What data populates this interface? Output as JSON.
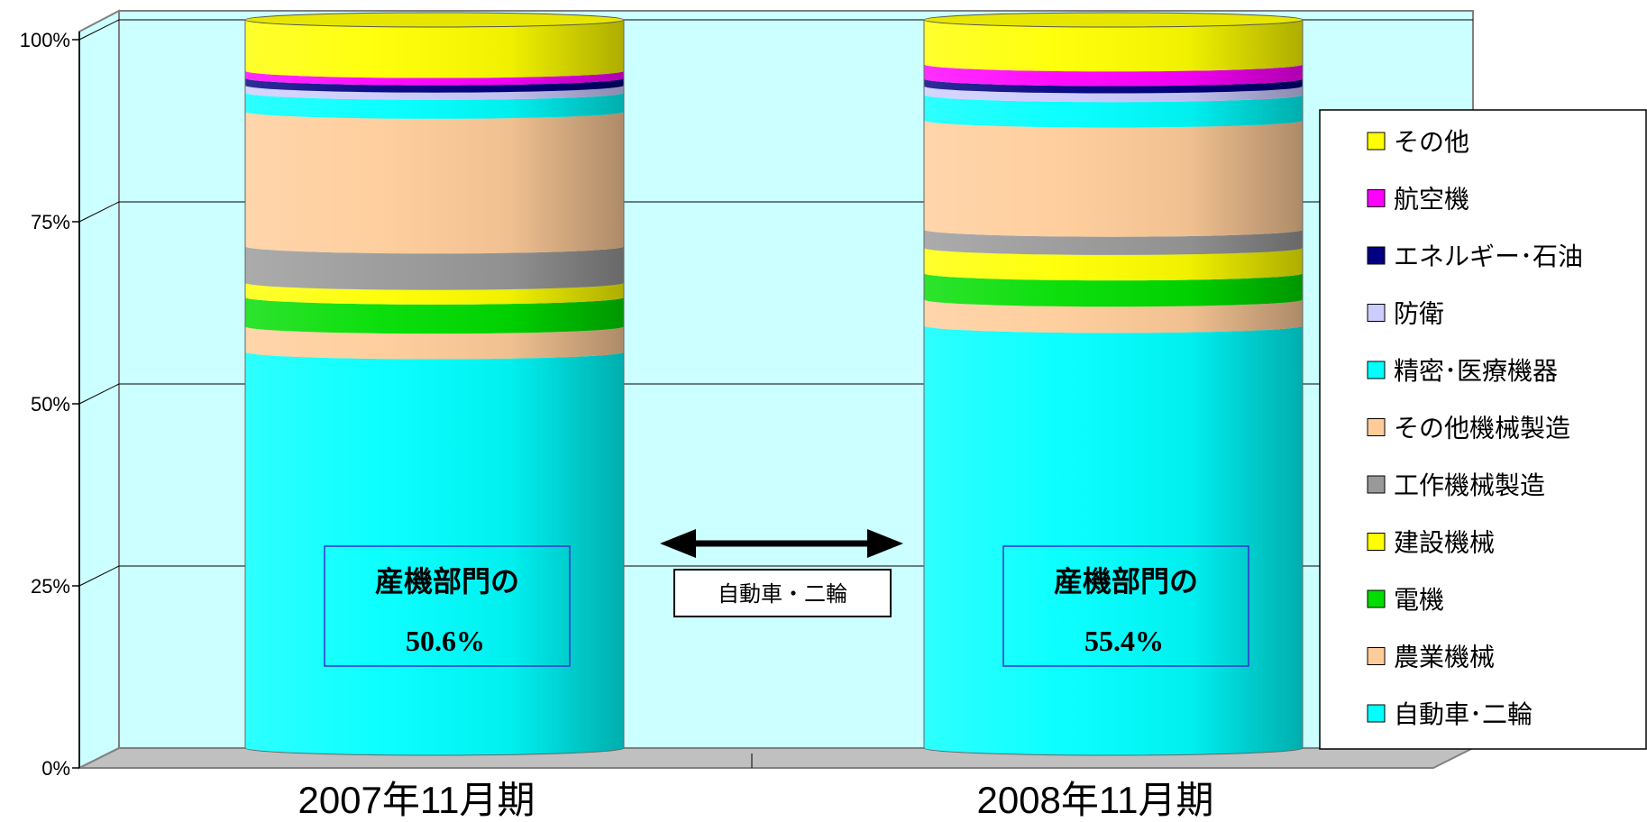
{
  "chart_data": {
    "type": "bar",
    "stacked": true,
    "percent_stacked": true,
    "style": "3d-cylinder",
    "categories": [
      "2007年11月期",
      "2008年11月期"
    ],
    "y_ticks": [
      "0%",
      "25%",
      "50%",
      "75%",
      "100%"
    ],
    "ylim": [
      0,
      100
    ],
    "grid": true,
    "legend_position": "right",
    "series": [
      {
        "name": "自動車･二輪",
        "color": "#00FFFF",
        "values": [
          54.4,
          58.0
        ]
      },
      {
        "name": "農業機械",
        "color": "#FFCC99",
        "values": [
          3.5,
          3.6
        ]
      },
      {
        "name": "電機",
        "color": "#00DD00",
        "values": [
          4.0,
          3.6
        ]
      },
      {
        "name": "建設機械",
        "color": "#FFFF00",
        "values": [
          2.0,
          3.5
        ]
      },
      {
        "name": "工作機械製造",
        "color": "#999999",
        "values": [
          5.0,
          2.5
        ]
      },
      {
        "name": "その他機械製造",
        "color": "#FFCC99",
        "values": [
          18.5,
          15.0
        ]
      },
      {
        "name": "精密･医療機器",
        "color": "#00FFFF",
        "values": [
          2.6,
          3.5
        ]
      },
      {
        "name": "防衛",
        "color": "#CCCCFF",
        "values": [
          1.0,
          1.2
        ]
      },
      {
        "name": "エネルギー･石油",
        "color": "#000080",
        "values": [
          1.0,
          1.0
        ]
      },
      {
        "name": "航空機",
        "color": "#FF00FF",
        "values": [
          1.0,
          2.0
        ]
      },
      {
        "name": "その他",
        "color": "#FFFF00",
        "values": [
          7.0,
          6.1
        ]
      }
    ],
    "annotations": [
      {
        "title": "産機部門の",
        "value": "50.6%"
      },
      {
        "title": "産機部門の",
        "value": "55.4%"
      }
    ],
    "arrow_label": "自動車・二輪",
    "colors": {
      "wall": "#CCFFFF",
      "floor": "#C0C0C0",
      "gridline": "#000000",
      "annotation_border": "#3333CC"
    }
  }
}
